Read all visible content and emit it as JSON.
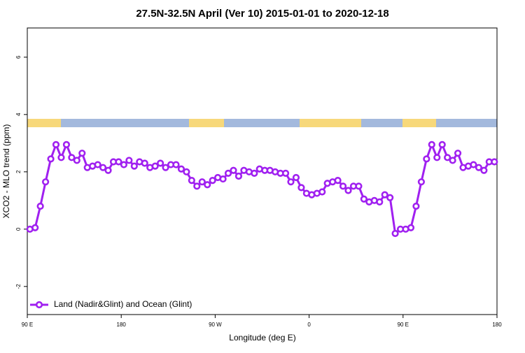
{
  "chart_data": {
    "type": "line",
    "title": "27.5N-32.5N April (Ver 10)   2015-01-01 to 2020-12-18",
    "x_label": "Longitude (deg E)",
    "y_label": "XCO2 - MLO trend (ppm)",
    "xlim": [
      90,
      540
    ],
    "ylim": [
      -2.98,
      7.02
    ],
    "xticks": [
      {
        "value": 90,
        "label": "90 E"
      },
      180,
      {
        "value": 270,
        "label": "90 W"
      },
      {
        "value": 360,
        "label": "0"
      },
      {
        "value": 450,
        "label": "90 E"
      },
      {
        "value": 540,
        "label": "180"
      }
    ],
    "yticks": [
      -2,
      0,
      2,
      4,
      6
    ],
    "legend_position": "bottomleft",
    "x": [
      92.5,
      97.5,
      102.5,
      107.5,
      112.5,
      117.5,
      122.5,
      127.5,
      132.5,
      137.5,
      142.5,
      147.5,
      152.5,
      157.5,
      162.5,
      167.5,
      172.5,
      177.5,
      182.5,
      187.5,
      192.5,
      197.5,
      202.5,
      207.5,
      212.5,
      217.5,
      222.5,
      227.5,
      232.5,
      237.5,
      242.5,
      247.5,
      252.5,
      257.5,
      262.5,
      267.5,
      272.5,
      277.5,
      282.5,
      287.5,
      292.5,
      297.5,
      302.5,
      307.5,
      312.5,
      317.5,
      322.5,
      327.5,
      332.5,
      337.5,
      342.5,
      347.5,
      352.5,
      357.5,
      362.5,
      367.5,
      372.5,
      377.5,
      382.5,
      387.5,
      392.5,
      397.5,
      402.5,
      407.5,
      412.5,
      417.5,
      422.5,
      427.5,
      432.5,
      437.5,
      442.5,
      447.5,
      452.5,
      457.5,
      462.5,
      467.5,
      472.5,
      477.5,
      482.5,
      487.5,
      492.5,
      497.5,
      502.5,
      507.5,
      512.5,
      517.5,
      522.5,
      527.5,
      532.5,
      537.5
    ],
    "series": [
      {
        "name": "Land (Nadir&Glint) and Ocean (Glint)",
        "color": "#a020f0",
        "values": [
          0,
          0.05,
          0.8,
          1.65,
          2.45,
          2.95,
          2.5,
          2.95,
          2.5,
          2.4,
          2.65,
          2.15,
          2.2,
          2.25,
          2.15,
          2.05,
          2.35,
          2.35,
          2.25,
          2.4,
          2.2,
          2.35,
          2.3,
          2.15,
          2.2,
          2.3,
          2.15,
          2.25,
          2.25,
          2.1,
          2.0,
          1.7,
          1.5,
          1.65,
          1.55,
          1.7,
          1.8,
          1.75,
          1.95,
          2.05,
          1.85,
          2.05,
          2.0,
          1.95,
          2.1,
          2.05,
          2.05,
          2.0,
          1.95,
          1.95,
          1.65,
          1.8,
          1.45,
          1.25,
          1.2,
          1.25,
          1.3,
          1.6,
          1.65,
          1.7,
          1.5,
          1.35,
          1.5,
          1.5,
          1.05,
          0.95,
          1.0,
          0.95,
          1.2,
          1.1,
          -0.15,
          0,
          0,
          0.05,
          0.8,
          1.65,
          2.45,
          2.95,
          2.5,
          2.95,
          2.5,
          2.4,
          2.65,
          2.15,
          2.2,
          2.25,
          2.15,
          2.05,
          2.35,
          2.35
        ]
      }
    ]
  }
}
